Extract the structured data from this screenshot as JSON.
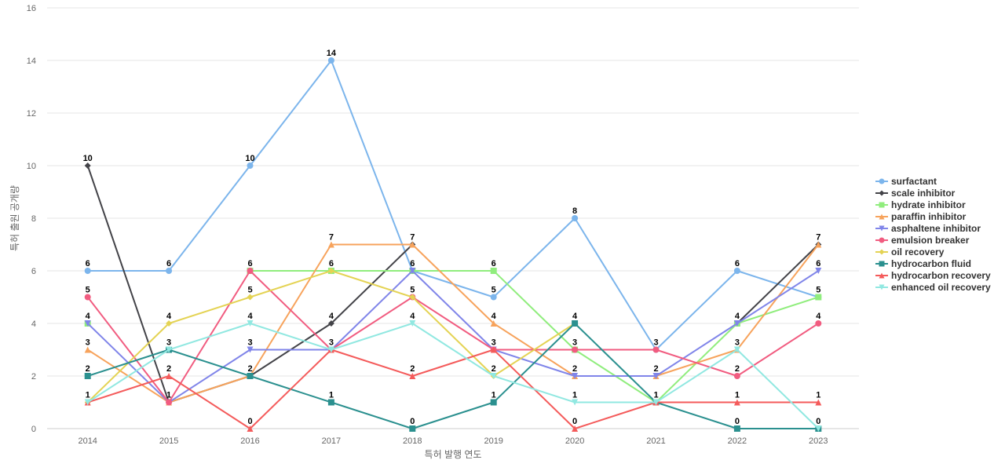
{
  "chart_data": {
    "type": "line",
    "categories": [
      "2014",
      "2015",
      "2016",
      "2017",
      "2018",
      "2019",
      "2020",
      "2021",
      "2022",
      "2023"
    ],
    "xlabel": "특허 발행 연도",
    "ylabel": "특허 출원 공개량",
    "ylim": [
      0,
      16
    ],
    "yticks": [
      "0",
      "2",
      "4",
      "6",
      "8",
      "10",
      "12",
      "14",
      "16"
    ],
    "grid": true,
    "legend_position": "right",
    "series": [
      {
        "name": "surfactant",
        "color": "#7cb5ec",
        "marker": "circle",
        "values": [
          6,
          6,
          10,
          14,
          6,
          5,
          8,
          3,
          6,
          5
        ]
      },
      {
        "name": "scale inhibitor",
        "color": "#434348",
        "marker": "diamond",
        "values": [
          10,
          1,
          2,
          4,
          7,
          null,
          null,
          null,
          4,
          7
        ]
      },
      {
        "name": "hydrate inhibitor",
        "color": "#90ed7d",
        "marker": "square",
        "values": [
          4,
          null,
          6,
          6,
          6,
          6,
          3,
          1,
          4,
          5
        ]
      },
      {
        "name": "paraffin inhibitor",
        "color": "#f7a35c",
        "marker": "triangle",
        "values": [
          3,
          1,
          2,
          7,
          7,
          4,
          2,
          2,
          3,
          7
        ]
      },
      {
        "name": "asphaltene inhibitor",
        "color": "#8085e9",
        "marker": "triangle-down",
        "values": [
          4,
          1,
          3,
          3,
          6,
          3,
          2,
          2,
          4,
          6
        ]
      },
      {
        "name": "emulsion breaker",
        "color": "#f15c80",
        "marker": "circle",
        "values": [
          5,
          1,
          6,
          3,
          5,
          3,
          3,
          3,
          2,
          4
        ]
      },
      {
        "name": "oil recovery",
        "color": "#e4d354",
        "marker": "diamond",
        "values": [
          1,
          4,
          5,
          6,
          5,
          2,
          4,
          null,
          null,
          null
        ]
      },
      {
        "name": "hydrocarbon fluid",
        "color": "#2b908f",
        "marker": "square",
        "values": [
          2,
          3,
          2,
          1,
          0,
          1,
          4,
          1,
          0,
          0
        ]
      },
      {
        "name": "hydrocarbon recovery",
        "color": "#f45b5b",
        "marker": "triangle",
        "values": [
          1,
          2,
          0,
          3,
          2,
          3,
          0,
          1,
          1,
          1
        ]
      },
      {
        "name": "enhanced oil recovery",
        "color": "#91e8e1",
        "marker": "triangle-down",
        "values": [
          1,
          3,
          4,
          3,
          4,
          2,
          1,
          1,
          3,
          0
        ]
      }
    ]
  },
  "data_labels": [
    {
      "cat": 0,
      "value": 10
    },
    {
      "cat": 0,
      "value": 6
    },
    {
      "cat": 0,
      "value": 5
    },
    {
      "cat": 0,
      "value": 4
    },
    {
      "cat": 0,
      "value": 3
    },
    {
      "cat": 0,
      "value": 2
    },
    {
      "cat": 0,
      "value": 1
    },
    {
      "cat": 1,
      "value": 6
    },
    {
      "cat": 1,
      "value": 4
    },
    {
      "cat": 1,
      "value": 3
    },
    {
      "cat": 1,
      "value": 2
    },
    {
      "cat": 1,
      "value": 1
    },
    {
      "cat": 2,
      "value": 10
    },
    {
      "cat": 2,
      "value": 6
    },
    {
      "cat": 2,
      "value": 5
    },
    {
      "cat": 2,
      "value": 4
    },
    {
      "cat": 2,
      "value": 3
    },
    {
      "cat": 2,
      "value": 2
    },
    {
      "cat": 2,
      "value": 0
    },
    {
      "cat": 3,
      "value": 14
    },
    {
      "cat": 3,
      "value": 7
    },
    {
      "cat": 3,
      "value": 6
    },
    {
      "cat": 3,
      "value": 4
    },
    {
      "cat": 3,
      "value": 3
    },
    {
      "cat": 3,
      "value": 1
    },
    {
      "cat": 4,
      "value": 7
    },
    {
      "cat": 4,
      "value": 6
    },
    {
      "cat": 4,
      "value": 5
    },
    {
      "cat": 4,
      "value": 4
    },
    {
      "cat": 4,
      "value": 2
    },
    {
      "cat": 4,
      "value": 0
    },
    {
      "cat": 5,
      "value": 6
    },
    {
      "cat": 5,
      "value": 5
    },
    {
      "cat": 5,
      "value": 4
    },
    {
      "cat": 5,
      "value": 3
    },
    {
      "cat": 5,
      "value": 2
    },
    {
      "cat": 5,
      "value": 1
    },
    {
      "cat": 6,
      "value": 8
    },
    {
      "cat": 6,
      "value": 4
    },
    {
      "cat": 6,
      "value": 3
    },
    {
      "cat": 6,
      "value": 2
    },
    {
      "cat": 6,
      "value": 1
    },
    {
      "cat": 6,
      "value": 0
    },
    {
      "cat": 7,
      "value": 3
    },
    {
      "cat": 7,
      "value": 2
    },
    {
      "cat": 7,
      "value": 1
    },
    {
      "cat": 8,
      "value": 6
    },
    {
      "cat": 8,
      "value": 4
    },
    {
      "cat": 8,
      "value": 3
    },
    {
      "cat": 8,
      "value": 2
    },
    {
      "cat": 8,
      "value": 1
    },
    {
      "cat": 8,
      "value": 0
    },
    {
      "cat": 9,
      "value": 7
    },
    {
      "cat": 9,
      "value": 6
    },
    {
      "cat": 9,
      "value": 5
    },
    {
      "cat": 9,
      "value": 4
    },
    {
      "cat": 9,
      "value": 1
    },
    {
      "cat": 9,
      "value": 0
    }
  ]
}
